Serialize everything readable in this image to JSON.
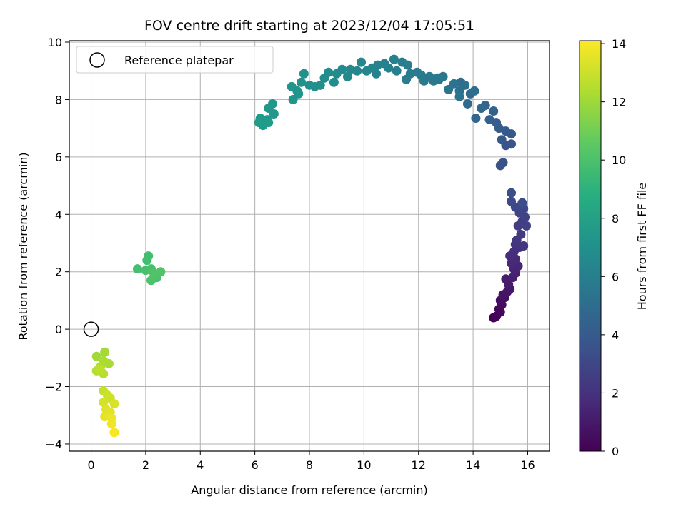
{
  "chart_data": {
    "type": "scatter",
    "title": "FOV centre drift starting at 2023/12/04 17:05:51",
    "xlabel": "Angular distance from reference (arcmin)",
    "ylabel": "Rotation from reference (arcmin)",
    "xlim": [
      -0.8,
      16.8
    ],
    "ylim": [
      -4.25,
      10.05
    ],
    "xticks": [
      0,
      2,
      4,
      6,
      8,
      10,
      12,
      14,
      16
    ],
    "yticks": [
      -4,
      -2,
      0,
      2,
      4,
      6,
      8,
      10
    ],
    "grid": true,
    "legend": {
      "placement": "top-left",
      "entries": [
        "Reference platepar"
      ]
    },
    "reference_point": {
      "x": 0,
      "y": 0
    },
    "colorbar": {
      "label": "Hours from first FF file",
      "range": [
        0,
        14.1
      ],
      "ticks": [
        0,
        2,
        4,
        6,
        8,
        10,
        12,
        14
      ],
      "colormap": "viridis"
    },
    "points": [
      [
        14.75,
        0.4,
        0.0
      ],
      [
        14.85,
        0.45,
        0.1
      ],
      [
        15.0,
        0.6,
        0.2
      ],
      [
        14.95,
        0.7,
        0.3
      ],
      [
        15.05,
        0.85,
        0.4
      ],
      [
        15.0,
        1.0,
        0.5
      ],
      [
        15.15,
        1.1,
        0.6
      ],
      [
        15.1,
        1.2,
        0.7
      ],
      [
        15.25,
        1.3,
        0.8
      ],
      [
        15.35,
        1.4,
        0.9
      ],
      [
        15.3,
        1.55,
        1.0
      ],
      [
        15.2,
        1.75,
        1.1
      ],
      [
        15.45,
        1.8,
        1.2
      ],
      [
        15.55,
        1.95,
        1.3
      ],
      [
        15.5,
        2.1,
        1.4
      ],
      [
        15.65,
        2.2,
        1.5
      ],
      [
        15.4,
        2.3,
        1.6
      ],
      [
        15.55,
        2.45,
        1.7
      ],
      [
        15.35,
        2.55,
        1.8
      ],
      [
        15.5,
        2.7,
        1.9
      ],
      [
        15.7,
        2.85,
        2.0
      ],
      [
        15.55,
        2.95,
        2.1
      ],
      [
        15.85,
        2.9,
        2.2
      ],
      [
        15.6,
        3.1,
        2.3
      ],
      [
        15.75,
        3.3,
        2.4
      ],
      [
        15.65,
        3.6,
        2.5
      ],
      [
        15.8,
        3.75,
        2.6
      ],
      [
        15.95,
        3.6,
        2.7
      ],
      [
        15.9,
        3.9,
        2.8
      ],
      [
        15.7,
        4.05,
        2.9
      ],
      [
        15.85,
        4.2,
        3.0
      ],
      [
        15.55,
        4.25,
        3.1
      ],
      [
        15.4,
        4.45,
        3.2
      ],
      [
        15.8,
        4.4,
        3.3
      ],
      [
        15.4,
        4.75,
        3.4
      ],
      [
        15.0,
        5.7,
        3.55
      ],
      [
        15.1,
        5.8,
        3.6
      ],
      [
        15.2,
        6.4,
        3.7
      ],
      [
        15.4,
        6.45,
        3.75
      ],
      [
        15.05,
        6.6,
        3.85
      ],
      [
        15.4,
        6.8,
        3.9
      ],
      [
        15.2,
        6.9,
        4.0
      ],
      [
        14.95,
        7.0,
        4.1
      ],
      [
        14.85,
        7.2,
        4.2
      ],
      [
        14.6,
        7.3,
        4.3
      ],
      [
        14.75,
        7.6,
        4.4
      ],
      [
        14.45,
        7.8,
        4.5
      ],
      [
        14.1,
        7.35,
        4.6
      ],
      [
        14.3,
        7.7,
        4.7
      ],
      [
        13.8,
        7.85,
        4.8
      ],
      [
        13.9,
        8.2,
        4.9
      ],
      [
        14.05,
        8.3,
        5.0
      ],
      [
        13.7,
        8.5,
        5.1
      ],
      [
        13.55,
        8.6,
        5.15
      ],
      [
        13.5,
        8.3,
        5.2
      ],
      [
        13.3,
        8.55,
        5.3
      ],
      [
        13.5,
        8.1,
        5.35
      ],
      [
        13.1,
        8.35,
        5.4
      ],
      [
        12.9,
        8.8,
        5.5
      ],
      [
        12.75,
        8.7,
        5.55
      ],
      [
        12.55,
        8.65,
        5.6
      ],
      [
        12.7,
        8.75,
        5.65
      ],
      [
        12.4,
        8.8,
        5.7
      ],
      [
        12.2,
        8.65,
        5.75
      ],
      [
        12.1,
        8.85,
        5.8
      ],
      [
        11.95,
        8.95,
        5.85
      ],
      [
        11.7,
        8.9,
        5.9
      ],
      [
        11.55,
        8.7,
        5.95
      ],
      [
        11.6,
        9.2,
        6.0
      ],
      [
        11.4,
        9.3,
        6.05
      ],
      [
        11.2,
        9.0,
        6.1
      ],
      [
        11.1,
        9.4,
        6.15
      ],
      [
        10.9,
        9.1,
        6.2
      ],
      [
        10.75,
        9.25,
        6.25
      ],
      [
        10.5,
        9.2,
        6.3
      ],
      [
        10.45,
        8.9,
        6.35
      ],
      [
        10.3,
        9.1,
        6.4
      ],
      [
        10.1,
        9.0,
        6.45
      ],
      [
        9.9,
        9.3,
        6.5
      ],
      [
        9.75,
        9.0,
        6.55
      ],
      [
        9.5,
        9.05,
        6.6
      ],
      [
        9.4,
        8.8,
        6.65
      ],
      [
        9.2,
        9.05,
        6.7
      ],
      [
        9.0,
        8.9,
        6.75
      ],
      [
        8.9,
        8.6,
        6.8
      ],
      [
        8.7,
        8.95,
        6.85
      ],
      [
        8.55,
        8.75,
        6.9
      ],
      [
        8.4,
        8.5,
        6.95
      ],
      [
        8.2,
        8.45,
        7.0
      ],
      [
        8.0,
        8.5,
        7.05
      ],
      [
        7.8,
        8.9,
        7.1
      ],
      [
        7.7,
        8.6,
        7.15
      ],
      [
        7.55,
        8.3,
        7.2
      ],
      [
        7.35,
        8.45,
        7.25
      ],
      [
        7.4,
        8.0,
        7.3
      ],
      [
        7.6,
        8.2,
        7.35
      ],
      [
        6.65,
        7.85,
        7.4
      ],
      [
        6.5,
        7.7,
        7.45
      ],
      [
        6.7,
        7.5,
        7.5
      ],
      [
        6.45,
        7.3,
        7.55
      ],
      [
        6.2,
        7.35,
        7.6
      ],
      [
        6.3,
        7.1,
        7.65
      ],
      [
        6.15,
        7.2,
        7.7
      ],
      [
        6.5,
        7.2,
        7.75
      ],
      [
        2.05,
        2.4,
        9.8
      ],
      [
        2.1,
        2.55,
        9.85
      ],
      [
        1.7,
        2.1,
        9.9
      ],
      [
        2.0,
        2.05,
        9.95
      ],
      [
        2.2,
        2.1,
        10.0
      ],
      [
        2.4,
        1.8,
        10.05
      ],
      [
        2.2,
        1.7,
        10.1
      ],
      [
        2.55,
        2.0,
        10.15
      ],
      [
        2.3,
        1.95,
        10.2
      ],
      [
        0.2,
        -0.95,
        12.1
      ],
      [
        0.5,
        -0.8,
        12.2
      ],
      [
        0.65,
        -1.2,
        12.3
      ],
      [
        0.45,
        -1.1,
        12.35
      ],
      [
        0.35,
        -1.3,
        12.4
      ],
      [
        0.2,
        -1.45,
        12.5
      ],
      [
        0.45,
        -1.55,
        12.6
      ],
      [
        0.3,
        -1.4,
        12.7
      ],
      [
        0.45,
        -2.15,
        12.9
      ],
      [
        0.6,
        -2.3,
        13.0
      ],
      [
        0.7,
        -2.4,
        13.1
      ],
      [
        0.45,
        -2.55,
        13.2
      ],
      [
        0.85,
        -2.6,
        13.3
      ],
      [
        0.55,
        -2.8,
        13.4
      ],
      [
        0.7,
        -2.9,
        13.5
      ],
      [
        0.5,
        -3.05,
        13.6
      ],
      [
        0.75,
        -3.1,
        13.7
      ],
      [
        0.75,
        -3.3,
        13.8
      ],
      [
        0.85,
        -3.6,
        14.0
      ]
    ]
  }
}
